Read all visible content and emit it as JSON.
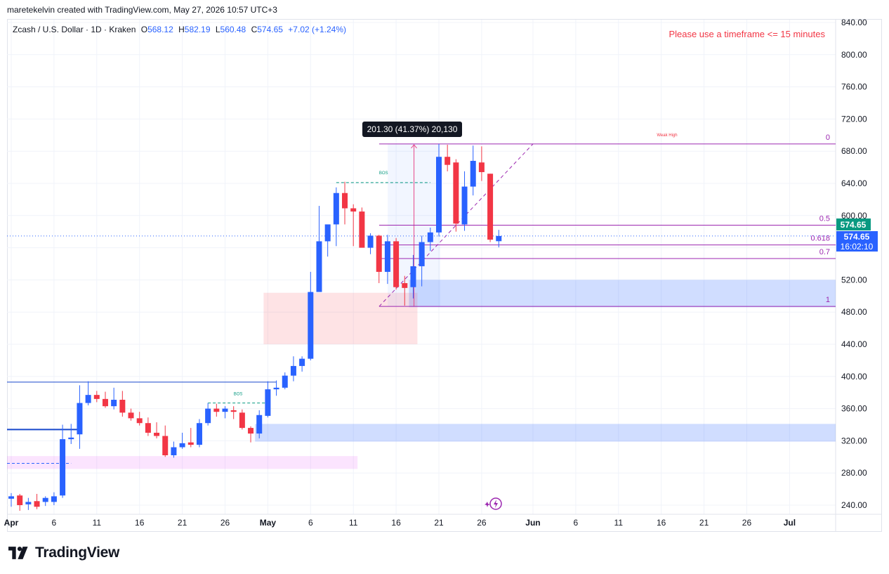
{
  "header": {
    "creator": "maretekelvin created with TradingView.com, May 27, 2026 10:57 UTC+3"
  },
  "legend": {
    "title": "Zcash / U.S. Dollar · 1D · Kraken",
    "o_label": "O",
    "o_value": "568.12",
    "h_label": "H",
    "h_value": "582.19",
    "l_label": "L",
    "l_value": "560.48",
    "c_label": "C",
    "c_value": "574.65",
    "change": "+7.02 (+1.24%)"
  },
  "warning": "Please use a timeframe <= 15 minutes",
  "measure_label": "201.30 (41.37%) 20,130",
  "price_tags": {
    "last_price": "574.65",
    "countdown": "16:02:10"
  },
  "fib_labels": [
    "0",
    "0.5",
    "0.618",
    "0.7",
    "1"
  ],
  "annotations": {
    "weak_high": "Weak High",
    "bos": "BOS"
  },
  "brand": {
    "logo_text": "TradingView",
    "logo_icon": "tradingview-logo-icon"
  },
  "colors": {
    "up": "#2962ff",
    "down": "#f23645",
    "fib": "#9c27b0",
    "bos": "#089981",
    "demand_zone": "#2962ff",
    "supply_zone": "#f7525f",
    "discount_zone": "#e040fb",
    "last_price_tag": "#089981",
    "last_close_tag": "#2962ff"
  },
  "chart_data": {
    "type": "candlestick",
    "y_ticks": [
      240,
      280,
      320,
      360,
      400,
      440,
      480,
      520,
      560,
      600,
      640,
      680,
      720,
      760,
      800,
      840
    ],
    "ylim": [
      225,
      845
    ],
    "x_ticks": [
      {
        "label": "Apr",
        "date": "2026-04-01"
      },
      {
        "label": "6",
        "date": "2026-04-06"
      },
      {
        "label": "11",
        "date": "2026-04-11"
      },
      {
        "label": "16",
        "date": "2026-04-16"
      },
      {
        "label": "21",
        "date": "2026-04-21"
      },
      {
        "label": "26",
        "date": "2026-04-26"
      },
      {
        "label": "May",
        "date": "2026-05-01"
      },
      {
        "label": "6",
        "date": "2026-05-06"
      },
      {
        "label": "11",
        "date": "2026-05-11"
      },
      {
        "label": "16",
        "date": "2026-05-16"
      },
      {
        "label": "21",
        "date": "2026-05-21"
      },
      {
        "label": "26",
        "date": "2026-05-26"
      },
      {
        "label": "Jun",
        "date": "2026-06-01"
      },
      {
        "label": "6",
        "date": "2026-06-06"
      },
      {
        "label": "11",
        "date": "2026-06-11"
      },
      {
        "label": "16",
        "date": "2026-06-16"
      },
      {
        "label": "21",
        "date": "2026-06-21"
      },
      {
        "label": "26",
        "date": "2026-06-26"
      },
      {
        "label": "Jul",
        "date": "2026-07-01"
      }
    ],
    "candles": [
      {
        "date": "2026-04-01",
        "o": 248,
        "h": 255,
        "l": 238,
        "c": 251
      },
      {
        "date": "2026-04-02",
        "o": 252,
        "h": 254,
        "l": 233,
        "c": 240
      },
      {
        "date": "2026-04-03",
        "o": 241,
        "h": 249,
        "l": 234,
        "c": 244
      },
      {
        "date": "2026-04-04",
        "o": 245,
        "h": 254,
        "l": 235,
        "c": 238
      },
      {
        "date": "2026-04-05",
        "o": 244,
        "h": 251,
        "l": 239,
        "c": 249
      },
      {
        "date": "2026-04-06",
        "o": 244,
        "h": 256,
        "l": 240,
        "c": 251
      },
      {
        "date": "2026-04-07",
        "o": 252,
        "h": 340,
        "l": 249,
        "c": 322
      },
      {
        "date": "2026-04-08",
        "o": 322,
        "h": 341,
        "l": 316,
        "c": 324
      },
      {
        "date": "2026-04-09",
        "o": 328,
        "h": 389,
        "l": 310,
        "c": 367
      },
      {
        "date": "2026-04-10",
        "o": 367,
        "h": 394,
        "l": 364,
        "c": 377
      },
      {
        "date": "2026-04-11",
        "o": 377,
        "h": 382,
        "l": 368,
        "c": 372
      },
      {
        "date": "2026-04-12",
        "o": 372,
        "h": 381,
        "l": 361,
        "c": 363
      },
      {
        "date": "2026-04-13",
        "o": 363,
        "h": 386,
        "l": 359,
        "c": 371
      },
      {
        "date": "2026-04-14",
        "o": 371,
        "h": 382,
        "l": 350,
        "c": 355
      },
      {
        "date": "2026-04-15",
        "o": 355,
        "h": 360,
        "l": 345,
        "c": 348
      },
      {
        "date": "2026-04-16",
        "o": 348,
        "h": 356,
        "l": 339,
        "c": 342
      },
      {
        "date": "2026-04-17",
        "o": 342,
        "h": 349,
        "l": 326,
        "c": 330
      },
      {
        "date": "2026-04-18",
        "o": 330,
        "h": 343,
        "l": 323,
        "c": 326
      },
      {
        "date": "2026-04-19",
        "o": 326,
        "h": 339,
        "l": 300,
        "c": 302
      },
      {
        "date": "2026-04-20",
        "o": 302,
        "h": 319,
        "l": 299,
        "c": 312
      },
      {
        "date": "2026-04-21",
        "o": 312,
        "h": 330,
        "l": 310,
        "c": 317
      },
      {
        "date": "2026-04-22",
        "o": 318,
        "h": 336,
        "l": 312,
        "c": 315
      },
      {
        "date": "2026-04-23",
        "o": 315,
        "h": 347,
        "l": 312,
        "c": 342
      },
      {
        "date": "2026-04-24",
        "o": 342,
        "h": 367,
        "l": 339,
        "c": 360
      },
      {
        "date": "2026-04-25",
        "o": 360,
        "h": 366,
        "l": 350,
        "c": 356
      },
      {
        "date": "2026-04-26",
        "o": 356,
        "h": 363,
        "l": 348,
        "c": 360
      },
      {
        "date": "2026-04-27",
        "o": 358,
        "h": 363,
        "l": 347,
        "c": 356
      },
      {
        "date": "2026-04-28",
        "o": 355,
        "h": 359,
        "l": 334,
        "c": 336
      },
      {
        "date": "2026-04-29",
        "o": 336,
        "h": 338,
        "l": 318,
        "c": 329
      },
      {
        "date": "2026-04-30",
        "o": 329,
        "h": 358,
        "l": 323,
        "c": 352
      },
      {
        "date": "2026-05-01",
        "o": 351,
        "h": 394,
        "l": 349,
        "c": 384
      },
      {
        "date": "2026-05-02",
        "o": 384,
        "h": 395,
        "l": 376,
        "c": 386
      },
      {
        "date": "2026-05-03",
        "o": 386,
        "h": 405,
        "l": 384,
        "c": 401
      },
      {
        "date": "2026-05-04",
        "o": 401,
        "h": 425,
        "l": 394,
        "c": 413
      },
      {
        "date": "2026-05-05",
        "o": 413,
        "h": 425,
        "l": 406,
        "c": 422
      },
      {
        "date": "2026-05-06",
        "o": 422,
        "h": 530,
        "l": 420,
        "c": 505
      },
      {
        "date": "2026-05-07",
        "o": 505,
        "h": 612,
        "l": 508,
        "c": 568
      },
      {
        "date": "2026-05-08",
        "o": 568,
        "h": 583,
        "l": 549,
        "c": 589
      },
      {
        "date": "2026-05-09",
        "o": 589,
        "h": 635,
        "l": 562,
        "c": 628
      },
      {
        "date": "2026-05-10",
        "o": 628,
        "h": 642,
        "l": 589,
        "c": 609
      },
      {
        "date": "2026-05-11",
        "o": 609,
        "h": 614,
        "l": 562,
        "c": 605
      },
      {
        "date": "2026-05-12",
        "o": 605,
        "h": 610,
        "l": 561,
        "c": 560
      },
      {
        "date": "2026-05-13",
        "o": 560,
        "h": 578,
        "l": 552,
        "c": 575
      },
      {
        "date": "2026-05-14",
        "o": 575,
        "h": 576,
        "l": 516,
        "c": 530
      },
      {
        "date": "2026-05-15",
        "o": 530,
        "h": 576,
        "l": 515,
        "c": 568
      },
      {
        "date": "2026-05-16",
        "o": 568,
        "h": 572,
        "l": 508,
        "c": 511
      },
      {
        "date": "2026-05-17",
        "o": 516,
        "h": 525,
        "l": 488,
        "c": 510
      },
      {
        "date": "2026-05-18",
        "o": 511,
        "h": 551,
        "l": 497,
        "c": 537
      },
      {
        "date": "2026-05-19",
        "o": 537,
        "h": 575,
        "l": 512,
        "c": 567
      },
      {
        "date": "2026-05-20",
        "o": 567,
        "h": 585,
        "l": 556,
        "c": 579
      },
      {
        "date": "2026-05-21",
        "o": 579,
        "h": 689,
        "l": 574,
        "c": 673
      },
      {
        "date": "2026-05-22",
        "o": 673,
        "h": 688,
        "l": 655,
        "c": 663
      },
      {
        "date": "2026-05-23",
        "o": 666,
        "h": 670,
        "l": 580,
        "c": 590
      },
      {
        "date": "2026-05-24",
        "o": 589,
        "h": 655,
        "l": 581,
        "c": 636
      },
      {
        "date": "2026-05-25",
        "o": 636,
        "h": 687,
        "l": 625,
        "c": 668
      },
      {
        "date": "2026-05-26",
        "o": 666,
        "h": 686,
        "l": 643,
        "c": 654
      },
      {
        "date": "2026-05-27",
        "o": 652,
        "h": 652,
        "l": 567,
        "c": 570
      },
      {
        "date": "2026-05-28",
        "o": 568.12,
        "h": 582.19,
        "l": 560.48,
        "c": 574.65
      }
    ],
    "fibonacci": {
      "level_0": 689,
      "level_1": 487,
      "levels": {
        "0.5": 588,
        "0.618": 563.5,
        "0.7": 546.5
      }
    },
    "measure": {
      "from": 487,
      "to": 689,
      "change": "201.30 (41.37%)",
      "volume": "20,130"
    },
    "bos_levels": [
      641,
      367
    ],
    "weak_high": 689,
    "zones": [
      {
        "kind": "demand",
        "from_date": "2026-05-18",
        "top": 520,
        "bottom": 486
      },
      {
        "kind": "supply",
        "from_date": "2026-05-01",
        "to_date": "2026-05-18",
        "top": 504,
        "bottom": 440
      },
      {
        "kind": "demand",
        "from_date": "2026-04-30",
        "top": 341,
        "bottom": 319
      },
      {
        "kind": "discount",
        "from_date": "2026-04-01",
        "to_date": "2026-05-11",
        "top": 301,
        "bottom": 285
      }
    ],
    "horizontal_lines": [
      {
        "price": 393,
        "color": "#1848cc"
      },
      {
        "price": 334,
        "color": "#1848cc"
      },
      {
        "price": 292,
        "color": "#2962ff",
        "dashed": true
      }
    ],
    "last_price": 574.65,
    "grid": true,
    "price_scale": "right"
  }
}
